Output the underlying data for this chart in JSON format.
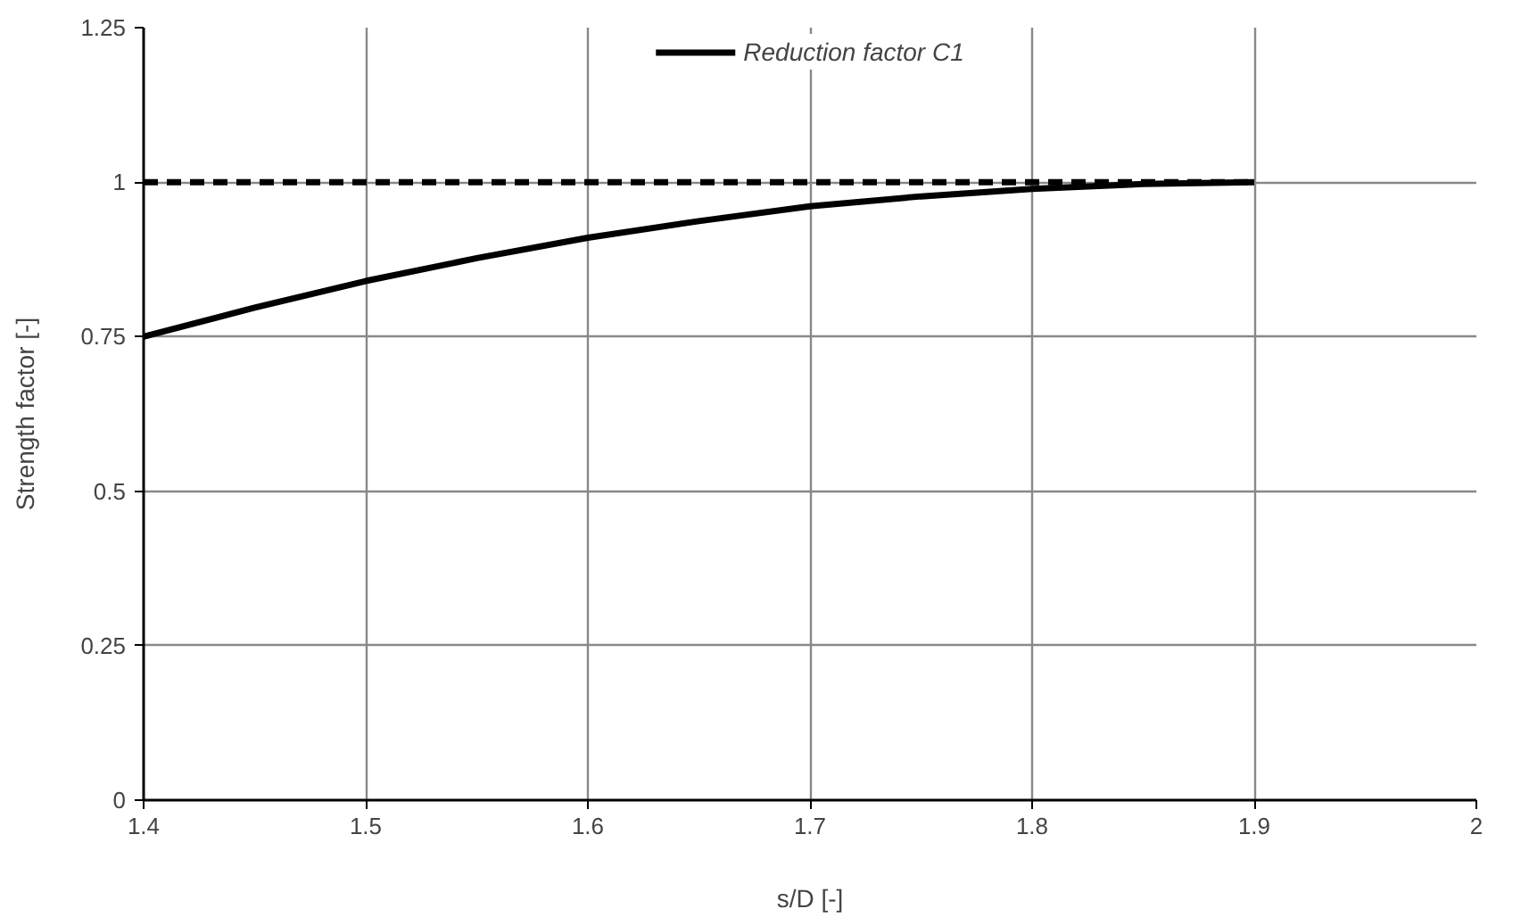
{
  "chart_data": {
    "type": "line",
    "xlabel": "s/D [-]",
    "ylabel": "Strength factor [-]",
    "x": [
      1.4,
      1.45,
      1.5,
      1.55,
      1.6,
      1.65,
      1.7,
      1.75,
      1.8,
      1.85,
      1.9
    ],
    "series": [
      {
        "name": "Reduction factor C1",
        "color": "#000000",
        "line_style": "solid",
        "values": [
          0.75,
          0.797,
          0.84,
          0.877,
          0.91,
          0.937,
          0.961,
          0.977,
          0.989,
          0.997,
          1.0
        ]
      },
      {
        "color": "#000000",
        "line_style": "dashed",
        "x": [
          1.4,
          1.9
        ],
        "values": [
          1.0,
          1.0
        ]
      }
    ],
    "xlim": [
      1.4,
      2
    ],
    "xticks": [
      1.4,
      1.5,
      1.6,
      1.7,
      1.8,
      1.9,
      2
    ],
    "ylim": [
      0,
      1.25
    ],
    "yticks": [
      0,
      0.25,
      0.5,
      0.75,
      1,
      1.25
    ],
    "grid": true,
    "legend": "top"
  }
}
